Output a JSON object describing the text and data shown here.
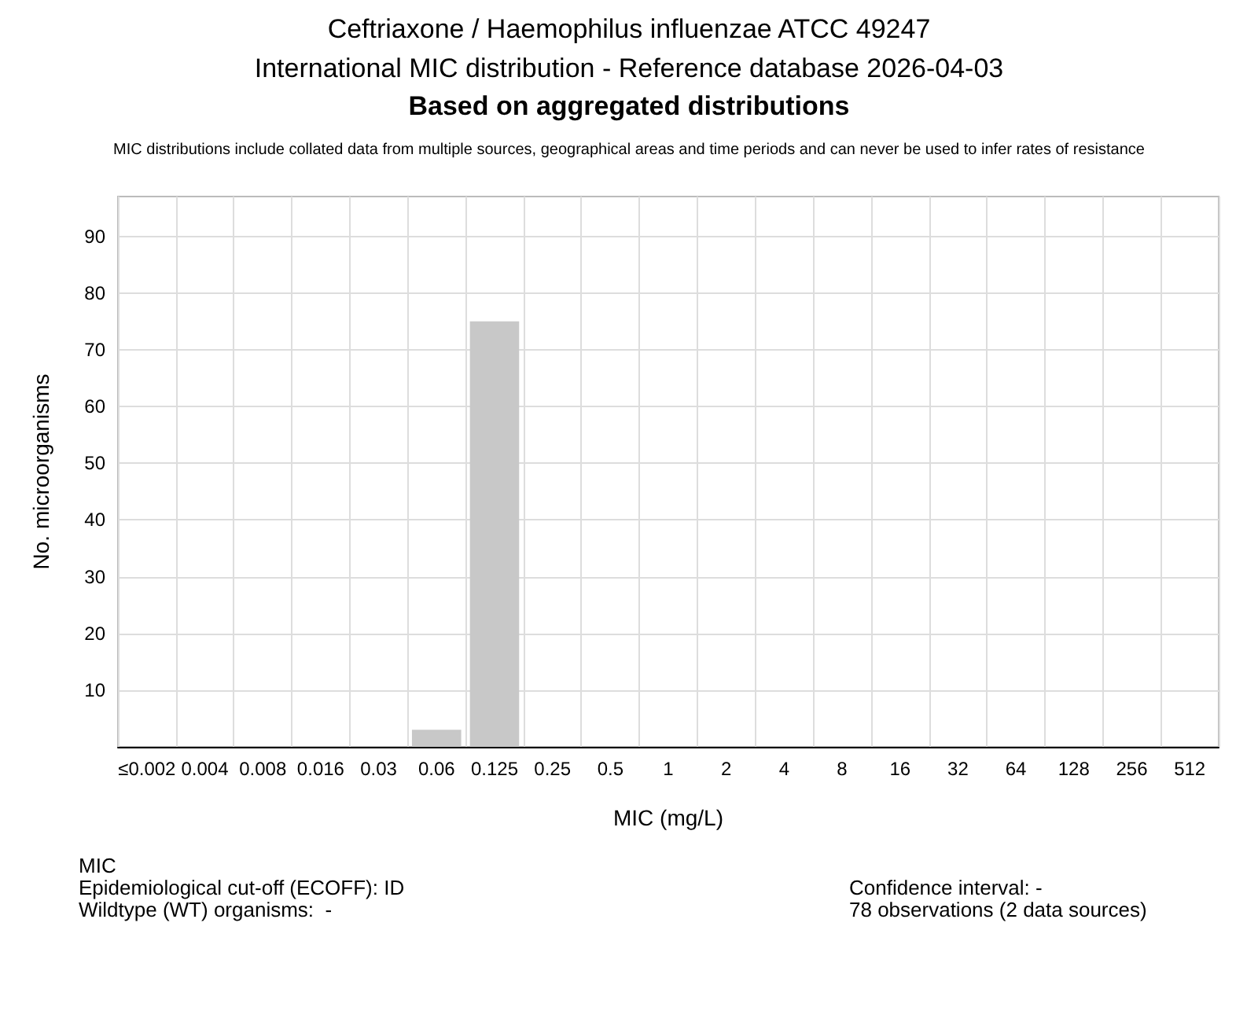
{
  "chart_data": {
    "type": "bar",
    "title": "Ceftriaxone / Haemophilus influenzae ATCC 49247\nInternational MIC distribution - Reference database 2026-04-03",
    "subtitle": "Based on aggregated distributions",
    "xlabel": "MIC (mg/L)",
    "ylabel": "No. microorganisms",
    "categories": [
      "≤0.002",
      "0.004",
      "0.008",
      "0.016",
      "0.03",
      "0.06",
      "0.125",
      "0.25",
      "0.5",
      "1",
      "2",
      "4",
      "8",
      "16",
      "32",
      "64",
      "128",
      "256",
      "512"
    ],
    "values": [
      0,
      0,
      0,
      0,
      0,
      3,
      75,
      0,
      0,
      0,
      0,
      0,
      0,
      0,
      0,
      0,
      0,
      0,
      0
    ],
    "color": "#c8c8c8",
    "ylim": [
      0,
      97
    ],
    "yticks": [
      10,
      20,
      30,
      40,
      50,
      60,
      70,
      80,
      90
    ],
    "grid": true,
    "annotations": [
      "MIC distributions include collated data from multiple sources, geographical areas and time periods and can never be used to infer rates of resistance",
      "MIC",
      "Epidemiological cut-off (ECOFF): ID",
      "Wildtype (WT) organisms:  -",
      "Confidence interval: -",
      "78 observations (2 data sources)"
    ]
  }
}
